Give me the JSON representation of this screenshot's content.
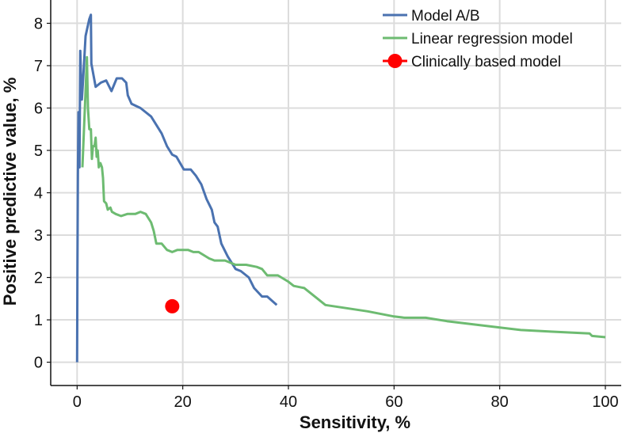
{
  "chart_data": {
    "type": "line",
    "title": "",
    "xlabel": "Sensitivity, %",
    "ylabel": "Positive predictive value, %",
    "xlim": [
      -5,
      103
    ],
    "ylim": [
      -0.55,
      8.55
    ],
    "xticks": [
      0,
      20,
      40,
      60,
      80,
      100
    ],
    "yticks": [
      0,
      1,
      2,
      3,
      4,
      5,
      6,
      7,
      8
    ],
    "xtick_labels": [
      "0",
      "20",
      "40",
      "60",
      "80",
      "100"
    ],
    "ytick_labels": [
      "0",
      "1",
      "2",
      "3",
      "4",
      "5",
      "6",
      "7",
      "8"
    ],
    "grid": true,
    "legend_position": "top-right",
    "series": [
      {
        "name": "Model A/B",
        "kind": "line",
        "color": "#4a72b0",
        "points": [
          [
            0,
            0
          ],
          [
            0.05,
            2.1
          ],
          [
            0.15,
            4.4
          ],
          [
            0.25,
            5.9
          ],
          [
            0.35,
            5.3
          ],
          [
            0.45,
            4.6
          ],
          [
            0.6,
            7.35
          ],
          [
            0.7,
            6.9
          ],
          [
            0.9,
            6.2
          ],
          [
            1.2,
            6.8
          ],
          [
            1.6,
            7.7
          ],
          [
            2.3,
            8.1
          ],
          [
            2.6,
            8.2
          ],
          [
            2.7,
            7.05
          ],
          [
            3.5,
            6.5
          ],
          [
            4.5,
            6.6
          ],
          [
            5.5,
            6.65
          ],
          [
            6.5,
            6.4
          ],
          [
            7.5,
            6.7
          ],
          [
            8.5,
            6.7
          ],
          [
            9.3,
            6.6
          ],
          [
            9.6,
            6.3
          ],
          [
            10.3,
            6.1
          ],
          [
            12,
            6.0
          ],
          [
            14,
            5.8
          ],
          [
            16,
            5.4
          ],
          [
            17,
            5.1
          ],
          [
            18,
            4.9
          ],
          [
            18.8,
            4.85
          ],
          [
            19.5,
            4.7
          ],
          [
            20.2,
            4.55
          ],
          [
            21.5,
            4.55
          ],
          [
            22.5,
            4.4
          ],
          [
            23.5,
            4.2
          ],
          [
            24.5,
            3.85
          ],
          [
            25.5,
            3.6
          ],
          [
            26,
            3.3
          ],
          [
            26.6,
            3.2
          ],
          [
            27.3,
            2.8
          ],
          [
            28.5,
            2.5
          ],
          [
            30,
            2.2
          ],
          [
            31,
            2.15
          ],
          [
            32.5,
            2.0
          ],
          [
            33.5,
            1.75
          ],
          [
            35,
            1.55
          ],
          [
            36,
            1.55
          ],
          [
            37.8,
            1.35
          ]
        ]
      },
      {
        "name": "Linear regression model",
        "kind": "line",
        "color": "#6dbb71",
        "points": [
          [
            1.0,
            4.6
          ],
          [
            1.3,
            5.5
          ],
          [
            1.6,
            6.4
          ],
          [
            1.85,
            7.2
          ],
          [
            2.05,
            6.0
          ],
          [
            2.3,
            5.5
          ],
          [
            2.6,
            5.5
          ],
          [
            2.8,
            4.8
          ],
          [
            3.0,
            5.1
          ],
          [
            3.3,
            5.1
          ],
          [
            3.5,
            5.3
          ],
          [
            3.7,
            4.85
          ],
          [
            3.9,
            5.0
          ],
          [
            4.1,
            4.6
          ],
          [
            4.4,
            4.7
          ],
          [
            4.7,
            4.6
          ],
          [
            4.9,
            4.35
          ],
          [
            5.1,
            3.8
          ],
          [
            5.5,
            3.75
          ],
          [
            5.8,
            3.6
          ],
          [
            6.3,
            3.65
          ],
          [
            6.6,
            3.55
          ],
          [
            7.3,
            3.5
          ],
          [
            8.3,
            3.45
          ],
          [
            9.5,
            3.5
          ],
          [
            11,
            3.5
          ],
          [
            12,
            3.55
          ],
          [
            13,
            3.5
          ],
          [
            14,
            3.3
          ],
          [
            14.5,
            3.1
          ],
          [
            15,
            2.8
          ],
          [
            16,
            2.8
          ],
          [
            17,
            2.65
          ],
          [
            18,
            2.6
          ],
          [
            19,
            2.65
          ],
          [
            21,
            2.65
          ],
          [
            22,
            2.6
          ],
          [
            23,
            2.6
          ],
          [
            25,
            2.45
          ],
          [
            26,
            2.4
          ],
          [
            28,
            2.4
          ],
          [
            30,
            2.3
          ],
          [
            32,
            2.3
          ],
          [
            34,
            2.25
          ],
          [
            35,
            2.2
          ],
          [
            36,
            2.05
          ],
          [
            38,
            2.05
          ],
          [
            40,
            1.9
          ],
          [
            41,
            1.8
          ],
          [
            43,
            1.75
          ],
          [
            45,
            1.55
          ],
          [
            47,
            1.35
          ],
          [
            55,
            1.2
          ],
          [
            60,
            1.08
          ],
          [
            62,
            1.05
          ],
          [
            66,
            1.05
          ],
          [
            70,
            0.97
          ],
          [
            80,
            0.82
          ],
          [
            84,
            0.76
          ],
          [
            90,
            0.72
          ],
          [
            97,
            0.68
          ],
          [
            97.5,
            0.62
          ],
          [
            100,
            0.59
          ]
        ]
      },
      {
        "name": "Clinically based model",
        "kind": "marker",
        "color": "#ff0000",
        "points": [
          [
            18,
            1.32
          ]
        ]
      }
    ]
  }
}
